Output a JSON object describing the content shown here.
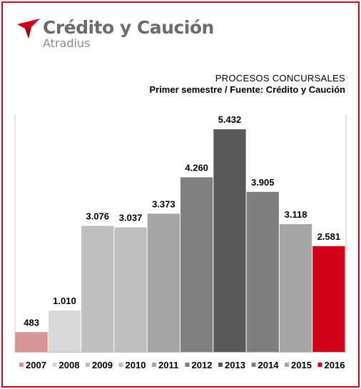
{
  "header": {
    "brand_name": "Crédito y Caución",
    "brand_sub": "Atradius",
    "brand_color": "#d0021b"
  },
  "chart_data": {
    "type": "bar",
    "title": "PROCESOS CONCURSALES",
    "subtitle": "Primer semestre  / Fuente: Crédito y Caución",
    "categories": [
      "2007",
      "2008",
      "2009",
      "2010",
      "2011",
      "2012",
      "2013",
      "2014",
      "2015",
      "2016"
    ],
    "values": [
      483,
      1010,
      3076,
      3037,
      3373,
      4260,
      5432,
      3905,
      3118,
      2581
    ],
    "value_labels": [
      "483",
      "1.010",
      "3.076",
      "3.037",
      "3.373",
      "4.260",
      "5.432",
      "3.905",
      "3.118",
      "2.581"
    ],
    "colors": [
      "#d99594",
      "#d9d9d9",
      "#bfbfbf",
      "#bfbfbf",
      "#a6a6a6",
      "#808080",
      "#595959",
      "#7f7f7f",
      "#a6a6a6",
      "#d0021b"
    ],
    "legend_placement": "bottom",
    "grid": false,
    "ylim": [
      0,
      5800
    ]
  }
}
